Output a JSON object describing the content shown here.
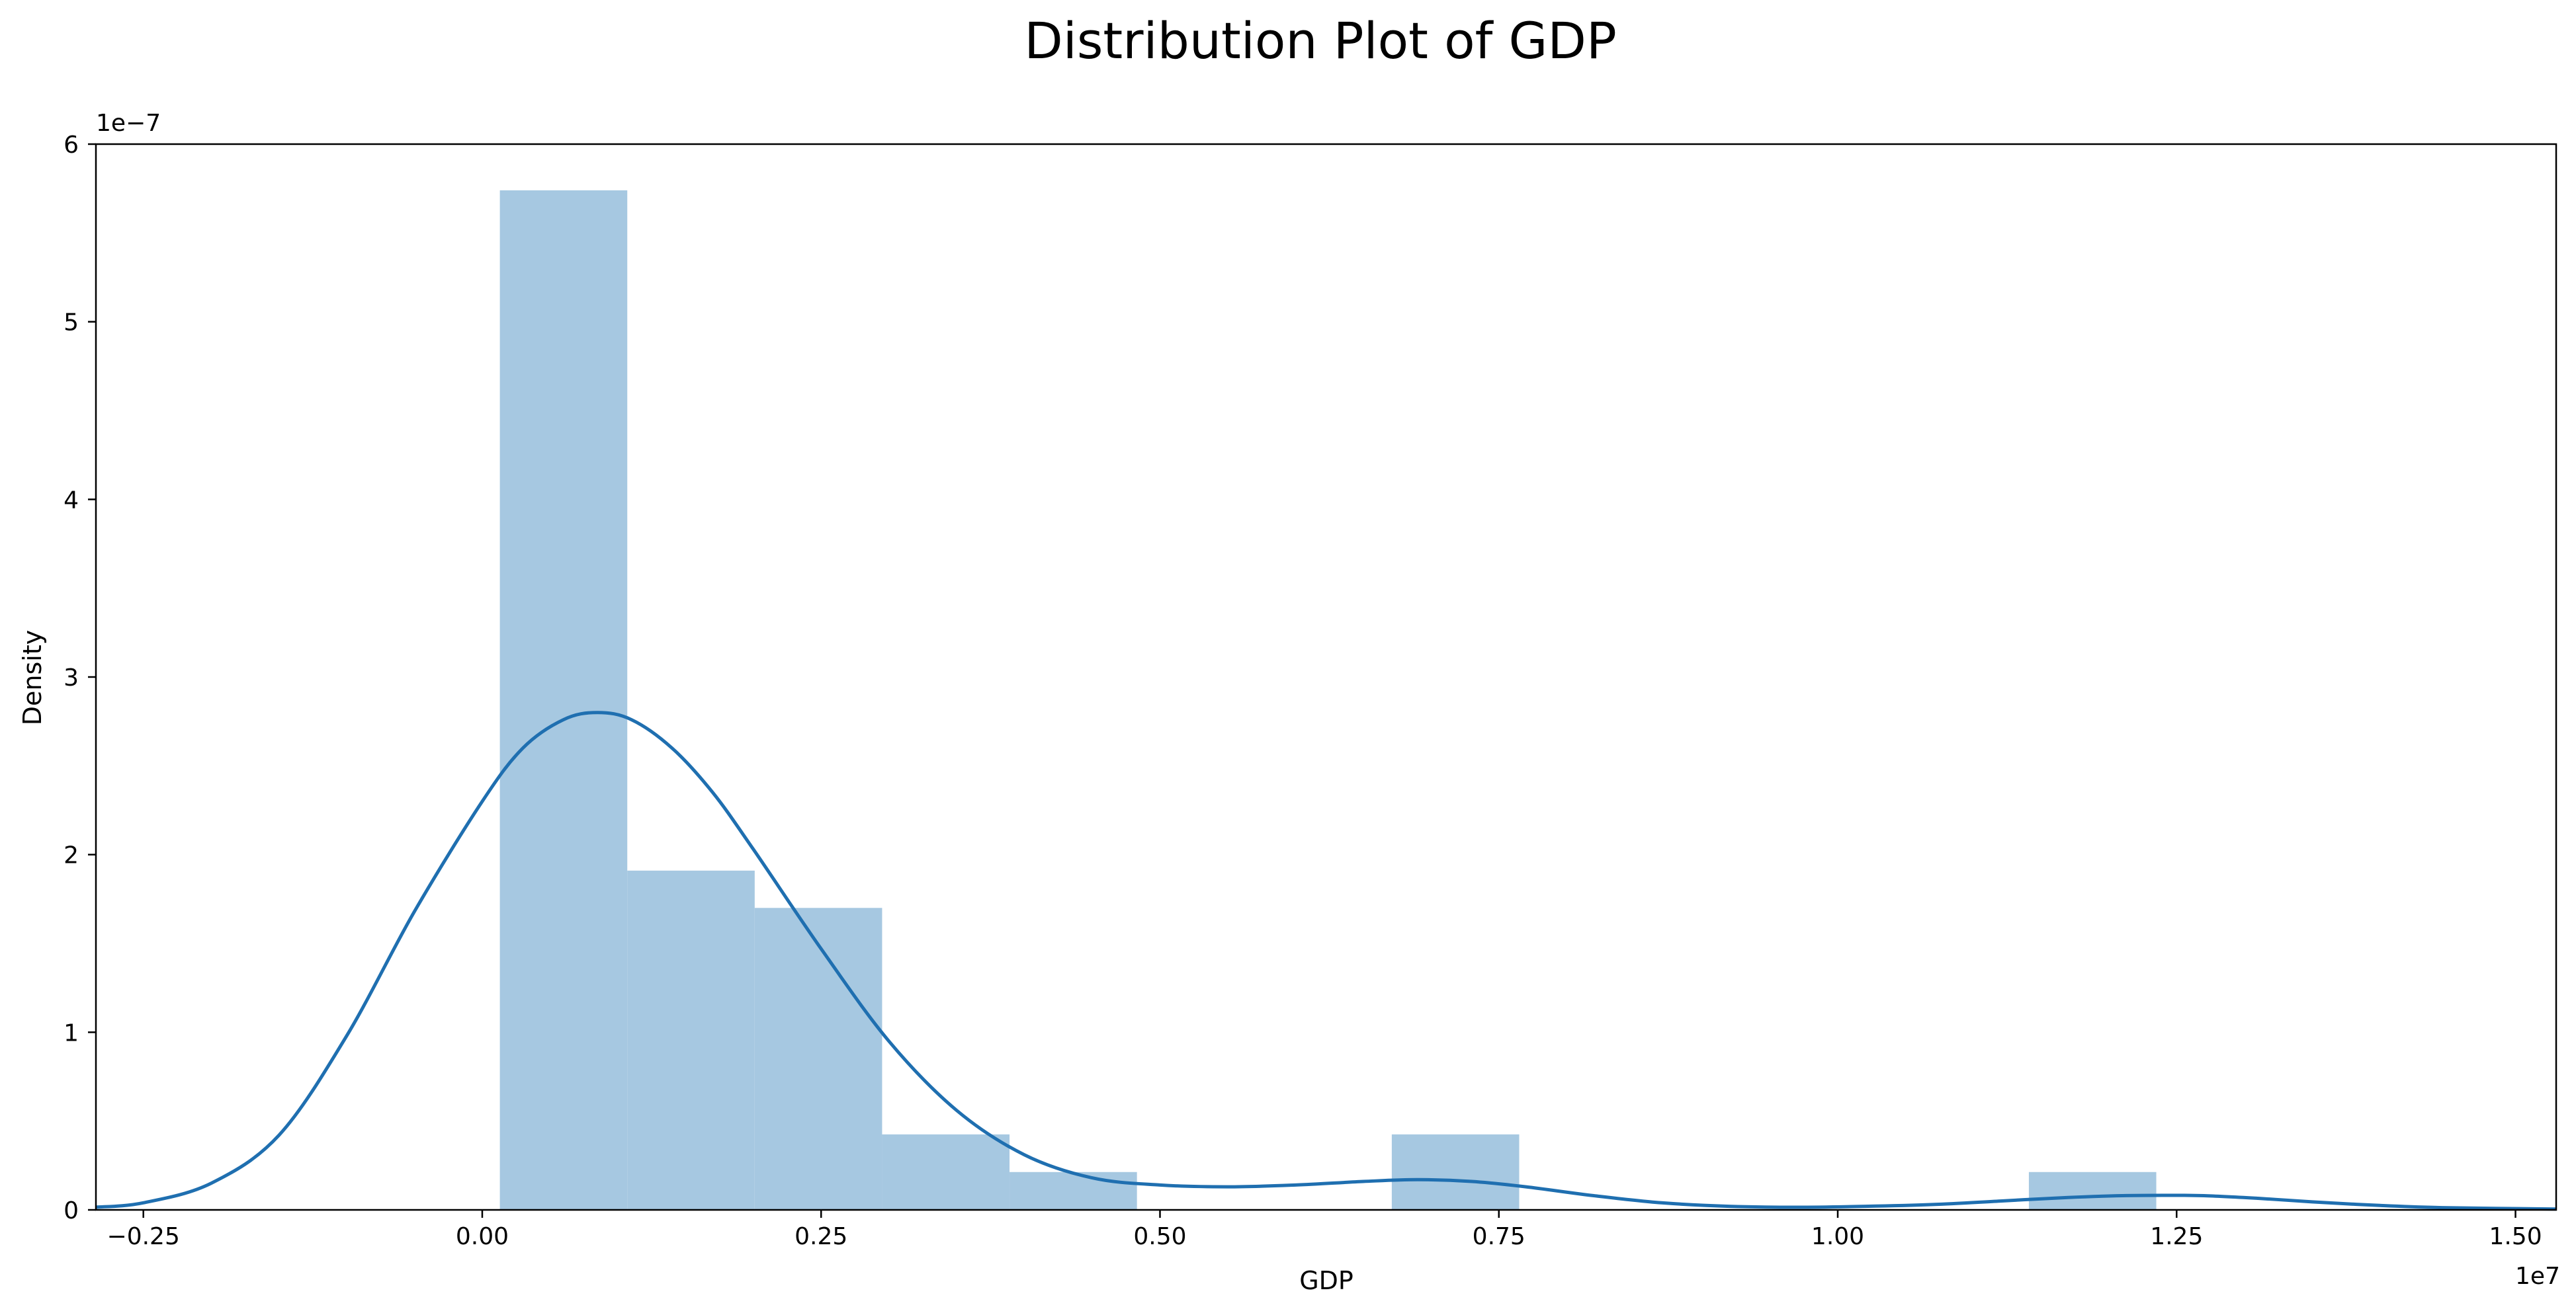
{
  "chart_data": {
    "type": "bar",
    "title": "Distribution Plot of GDP",
    "xlabel": "GDP",
    "ylabel": "Density",
    "x_offset_label": "1e7",
    "y_offset_label": "1e−7",
    "xlim": [
      -2850000,
      15300000
    ],
    "ylim": [
      0,
      6e-07
    ],
    "xticks": [
      -2500000,
      0,
      2500000,
      5000000,
      7500000,
      10000000,
      12500000,
      15000000
    ],
    "xtick_labels": [
      "−0.25",
      "0.00",
      "0.25",
      "0.50",
      "0.75",
      "1.00",
      "1.25",
      "1.50"
    ],
    "yticks": [
      0,
      1e-07,
      2e-07,
      3e-07,
      4e-07,
      5e-07,
      6e-07
    ],
    "ytick_labels": [
      "0",
      "1",
      "2",
      "3",
      "4",
      "5",
      "6"
    ],
    "grid": false,
    "histogram": {
      "color": "#a6c8e1",
      "bins": [
        {
          "x0": 130000,
          "x1": 1070000,
          "density": 5.74e-07
        },
        {
          "x0": 1070000,
          "x1": 2010000,
          "density": 1.91e-07
        },
        {
          "x0": 2010000,
          "x1": 2950000,
          "density": 1.7e-07
        },
        {
          "x0": 2950000,
          "x1": 3890000,
          "density": 4.25e-08
        },
        {
          "x0": 3890000,
          "x1": 4830000,
          "density": 2.13e-08
        },
        {
          "x0": 6710000,
          "x1": 7650000,
          "density": 4.25e-08
        },
        {
          "x0": 11410000,
          "x1": 12350000,
          "density": 2.13e-08
        }
      ]
    },
    "kde": {
      "color": "#1f6fb0",
      "x": [
        -2850000,
        -2500000,
        -2000000,
        -1500000,
        -1000000,
        -500000,
        0,
        300000,
        600000,
        850000,
        1100000,
        1400000,
        1700000,
        2000000,
        2500000,
        3000000,
        3500000,
        4000000,
        4500000,
        5000000,
        5500000,
        6000000,
        6500000,
        6900000,
        7300000,
        7700000,
        8200000,
        8700000,
        9200000,
        9700000,
        10200000,
        10700000,
        11200000,
        11700000,
        12100000,
        12400000,
        12700000,
        13100000,
        13500000,
        14000000,
        14500000,
        15300000
      ],
      "y": [
        1.5e-09,
        4e-09,
        1.5e-08,
        4.2e-08,
        9.8e-08,
        1.68e-07,
        2.3e-07,
        2.6e-07,
        2.76e-07,
        2.8e-07,
        2.76e-07,
        2.6e-07,
        2.35e-07,
        2.03e-07,
        1.47e-07,
        9.5e-08,
        5.6e-08,
        3.1e-08,
        1.8e-08,
        1.4e-08,
        1.3e-08,
        1.4e-08,
        1.6e-08,
        1.7e-08,
        1.6e-08,
        1.3e-08,
        8e-09,
        4e-09,
        2e-09,
        1.5e-09,
        2e-09,
        3e-09,
        5e-09,
        7e-09,
        8e-09,
        8.2e-09,
        8e-09,
        6.5e-09,
        4.5e-09,
        2.5e-09,
        1.2e-09,
        5e-10
      ]
    }
  }
}
